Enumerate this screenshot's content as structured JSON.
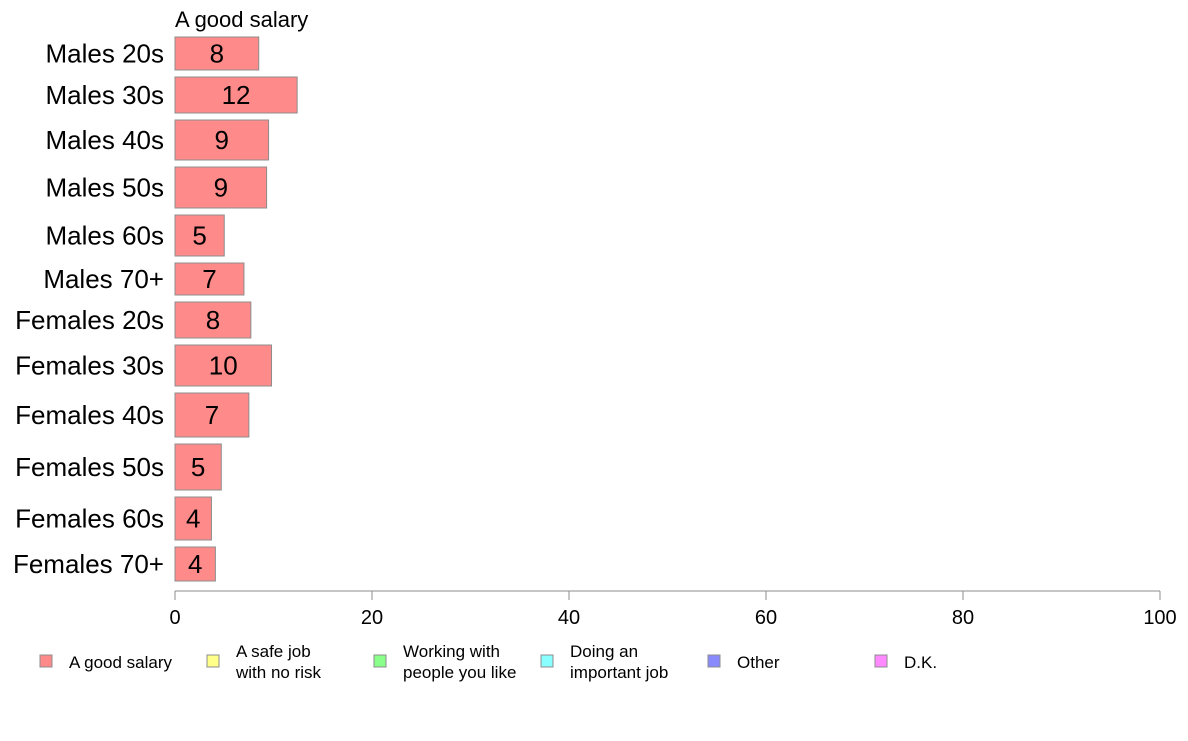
{
  "chart_data": {
    "type": "bar",
    "orientation": "horizontal",
    "panel_title": "A good salary",
    "categories": [
      "Males 20s",
      "Males 30s",
      "Males 40s",
      "Males 50s",
      "Males 60s",
      "Males 70+",
      "Females 20s",
      "Females 30s",
      "Females 40s",
      "Females 50s",
      "Females 60s",
      "Females 70+"
    ],
    "series": [
      {
        "name": "A good salary",
        "color": "#ff8a8a",
        "values": [
          8.5,
          12.4,
          9.5,
          9.3,
          5.0,
          7.0,
          7.7,
          9.8,
          7.5,
          4.7,
          3.7,
          4.1
        ],
        "labels": [
          "8",
          "12",
          "9",
          "9",
          "5",
          "7",
          "8",
          "10",
          "7",
          "5",
          "4",
          "4"
        ]
      }
    ],
    "xlim": [
      0,
      100
    ],
    "xticks": [
      "0",
      "20",
      "40",
      "60",
      "80",
      "100"
    ],
    "grid": false,
    "legend_position": "bottom",
    "legend": [
      {
        "label": "A good salary",
        "color": "#ff8a8a"
      },
      {
        "label": "A safe job\nwith no risk",
        "color": "#ffff8a"
      },
      {
        "label": "Working with\npeople you like",
        "color": "#8aff8a"
      },
      {
        "label": "Doing an\nimportant job",
        "color": "#8affff"
      },
      {
        "label": "Other",
        "color": "#8a8aff"
      },
      {
        "label": "D.K.",
        "color": "#ff8aff"
      }
    ]
  }
}
